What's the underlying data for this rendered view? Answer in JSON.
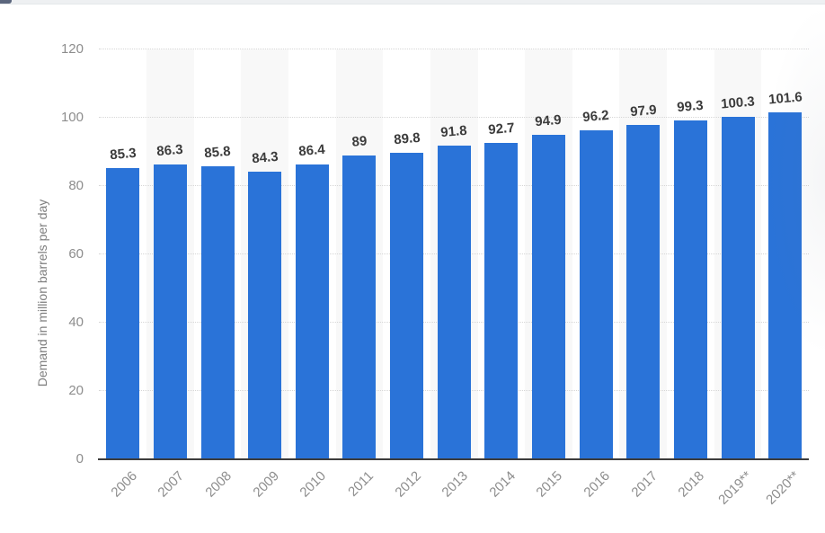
{
  "chart_data": {
    "type": "bar",
    "title": "",
    "ylabel": "Demand in million barrels per day",
    "xlabel": "",
    "categories": [
      "2006",
      "2007",
      "2008",
      "2009",
      "2010",
      "2011",
      "2012",
      "2013",
      "2014",
      "2015",
      "2016",
      "2017",
      "2018",
      "2019**",
      "2020**"
    ],
    "values": [
      85.3,
      86.3,
      85.8,
      84.3,
      86.4,
      89,
      89.8,
      91.8,
      92.7,
      94.9,
      96.2,
      97.9,
      99.3,
      100.3,
      101.6
    ],
    "ylim": [
      0,
      120
    ],
    "yticks": [
      0,
      20,
      40,
      60,
      80,
      100,
      120
    ],
    "grid": "horizontal-dotted",
    "legend": "none",
    "bar_color": "#2a73d8",
    "value_label_color": "#3b3b3b",
    "axis_text_color": "#8d8d8d",
    "axis_title_color": "#7e7e7e",
    "gridline_color": "#d6d6d6",
    "baseline_color": "#3c3c3c",
    "stripe_color": "#f8f8f8"
  }
}
